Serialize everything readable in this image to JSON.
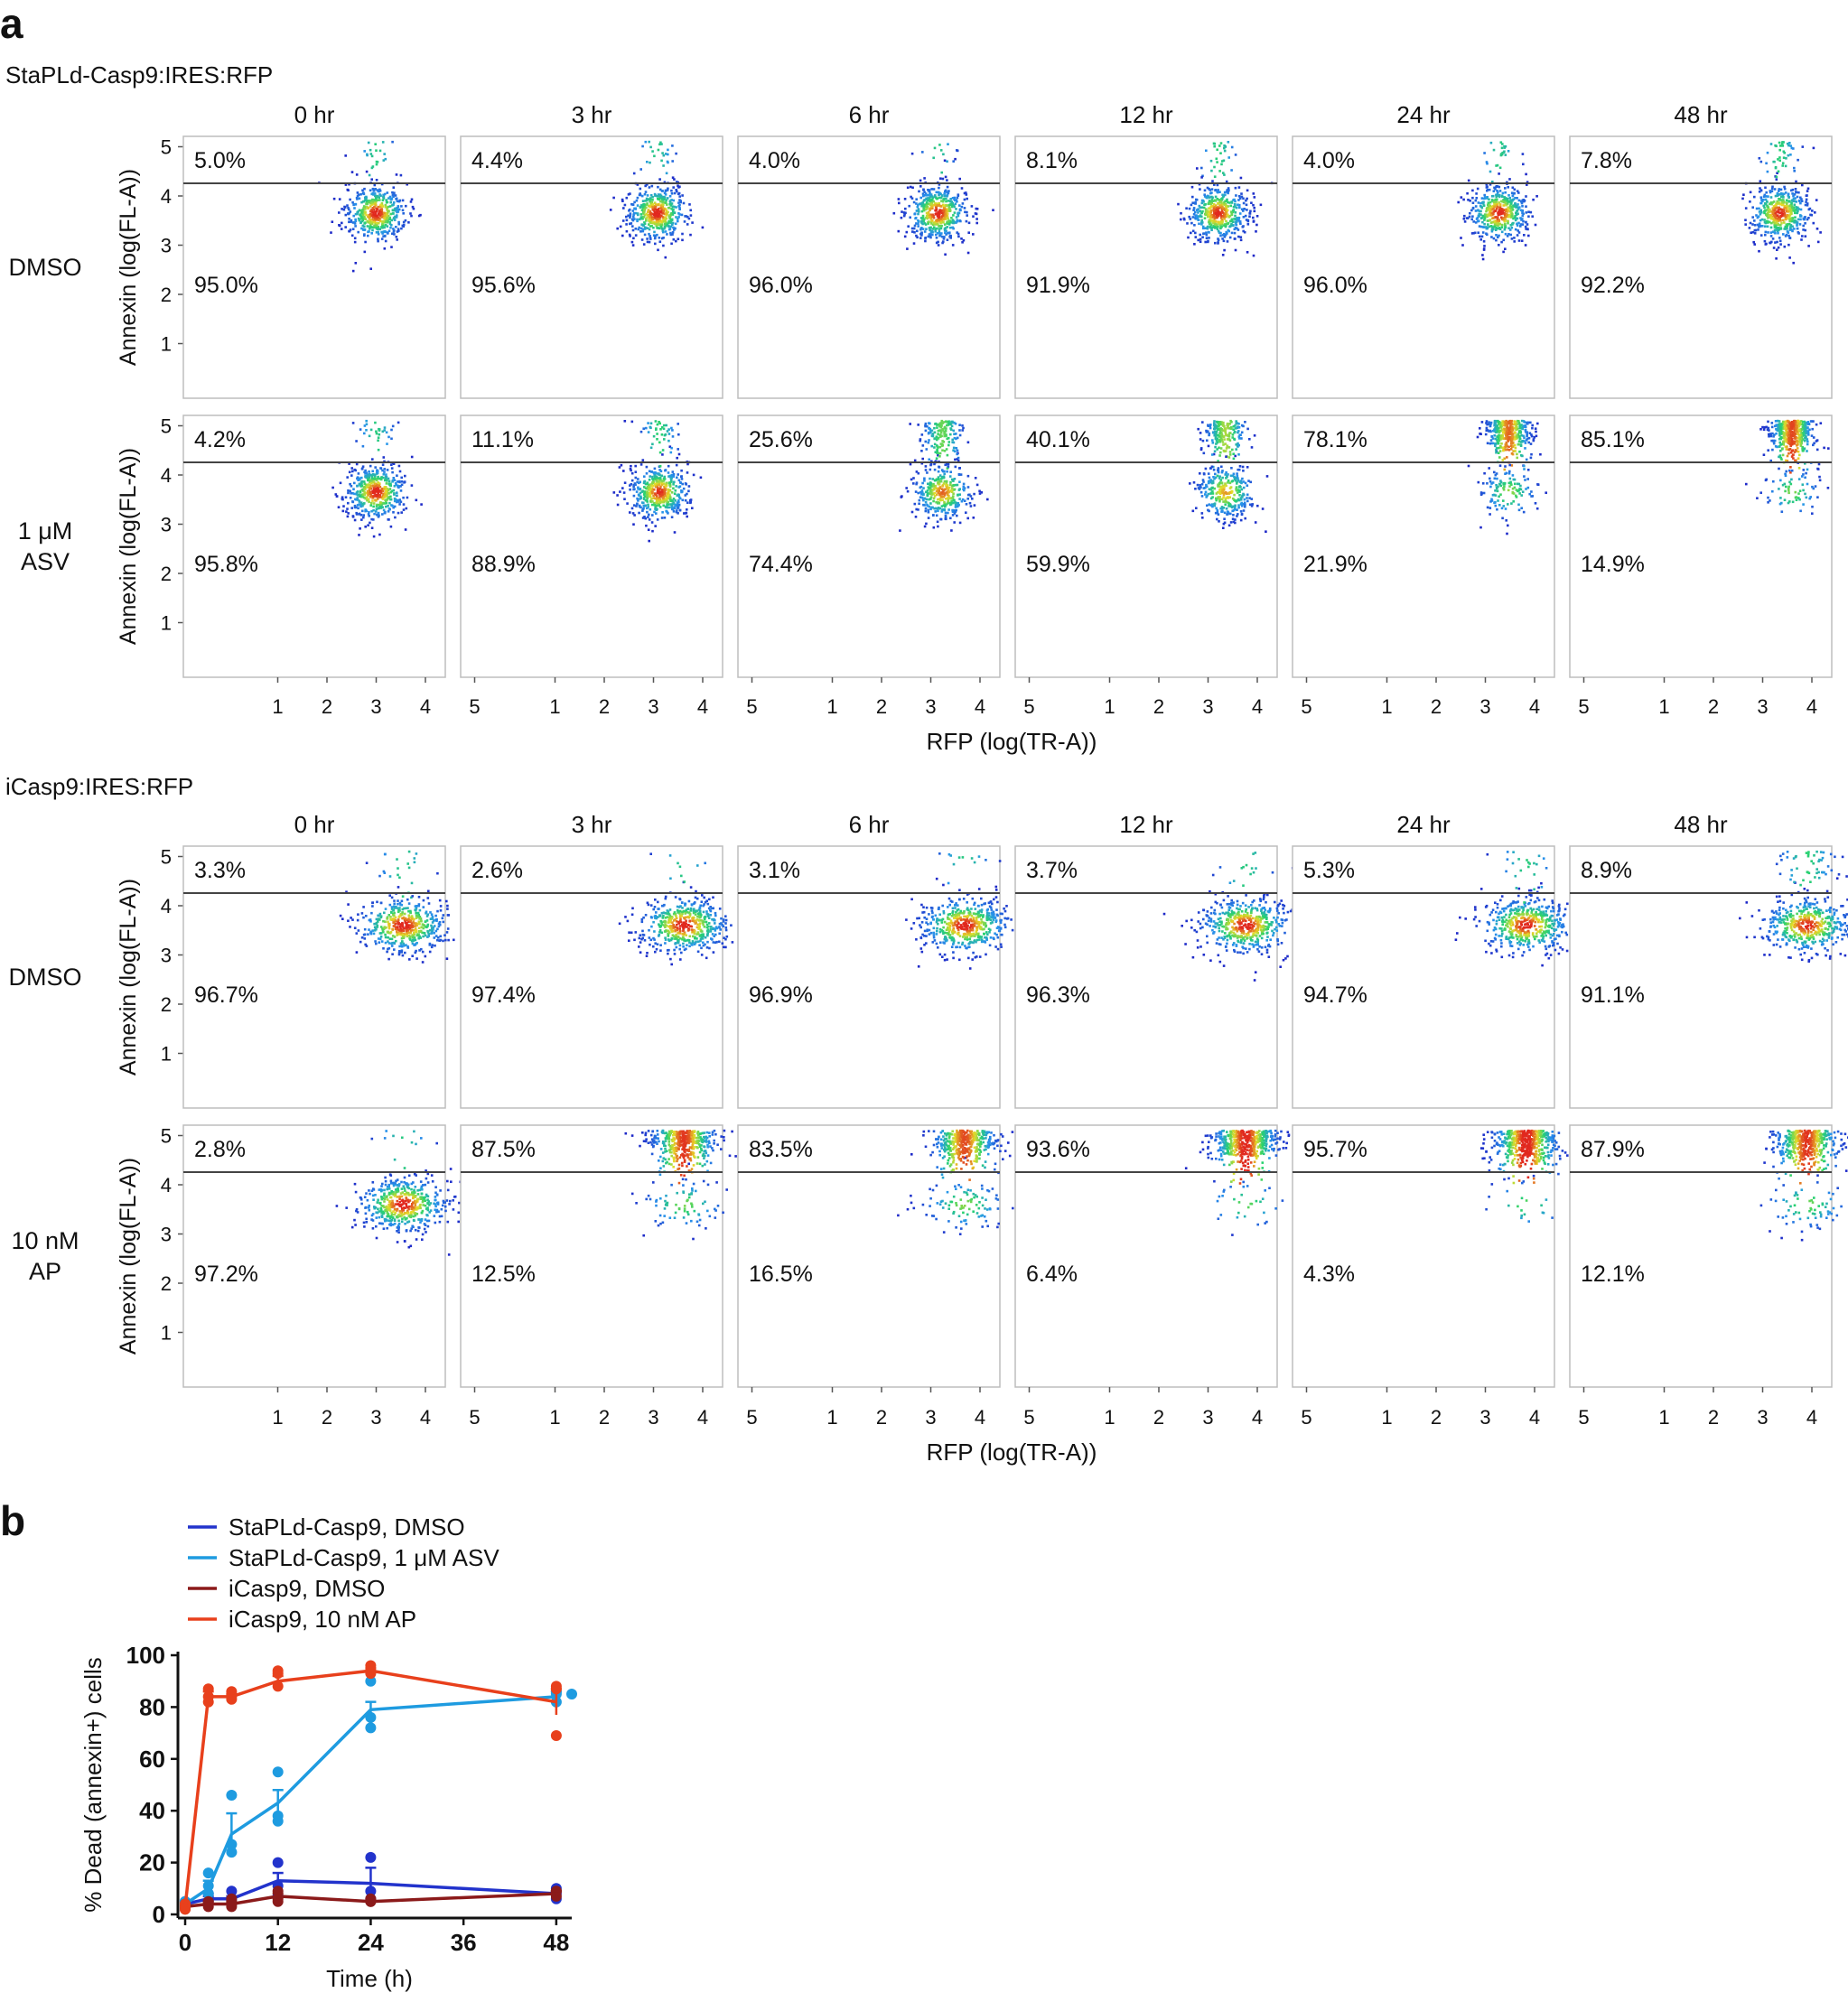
{
  "panel_a": {
    "letter": "a",
    "x_axis_label": "RFP (log(TR-A))",
    "y_axis_label": "Annexin (log(FL-A))",
    "tick_labels": [
      "1",
      "2",
      "3",
      "4",
      "5"
    ],
    "time_points": [
      "0 hr",
      "3 hr",
      "6 hr",
      "12 hr",
      "24 hr",
      "48 hr"
    ],
    "constructs": [
      {
        "title": "StaPLd-Casp9:IRES:RFP",
        "rows": [
          {
            "label_lines": [
              "DMSO"
            ],
            "upper_pct": [
              "5.0%",
              "4.4%",
              "4.0%",
              "8.1%",
              "4.0%",
              "7.8%"
            ],
            "lower_pct": [
              "95.0%",
              "95.6%",
              "96.0%",
              "91.9%",
              "96.0%",
              "92.2%"
            ]
          },
          {
            "label_lines": [
              "1 μM",
              "ASV"
            ],
            "upper_pct": [
              "4.2%",
              "11.1%",
              "25.6%",
              "40.1%",
              "78.1%",
              "85.1%"
            ],
            "lower_pct": [
              "95.8%",
              "88.9%",
              "74.4%",
              "59.9%",
              "21.9%",
              "14.9%"
            ]
          }
        ]
      },
      {
        "title": "iCasp9:IRES:RFP",
        "rows": [
          {
            "label_lines": [
              "DMSO"
            ],
            "upper_pct": [
              "3.3%",
              "2.6%",
              "3.1%",
              "3.7%",
              "5.3%",
              "8.9%"
            ],
            "lower_pct": [
              "96.7%",
              "97.4%",
              "96.9%",
              "96.3%",
              "94.7%",
              "91.1%"
            ]
          },
          {
            "label_lines": [
              "10 nM",
              "AP"
            ],
            "upper_pct": [
              "2.8%",
              "87.5%",
              "83.5%",
              "93.6%",
              "95.7%",
              "87.9%"
            ],
            "lower_pct": [
              "97.2%",
              "12.5%",
              "16.5%",
              "6.4%",
              "4.3%",
              "12.1%"
            ]
          }
        ]
      }
    ]
  },
  "panel_b": {
    "letter": "b",
    "colors": {
      "dark_blue": "#2233cc",
      "light_blue": "#1e9be0",
      "dark_red": "#8b1a1a",
      "red": "#e8401c"
    },
    "chart_data": {
      "type": "line",
      "xlabel": "Time (h)",
      "ylabel": "% Dead (annexin+) cells",
      "xlim": [
        0,
        50
      ],
      "ylim": [
        0,
        100
      ],
      "xticks": [
        0,
        12,
        24,
        36,
        48
      ],
      "yticks": [
        0,
        20,
        40,
        60,
        80,
        100
      ],
      "x": [
        0,
        3,
        6,
        12,
        24,
        48
      ],
      "series": [
        {
          "name": "StaPLd-Casp9, DMSO",
          "color": "#2233cc",
          "values": [
            4,
            6,
            6,
            13,
            12,
            8
          ],
          "sem": [
            1,
            1,
            1,
            3,
            6,
            1
          ],
          "points": [
            [
              0,
              3
            ],
            [
              0,
              5
            ],
            [
              0,
              4
            ],
            [
              3,
              4
            ],
            [
              3,
              8
            ],
            [
              3,
              5
            ],
            [
              6,
              4
            ],
            [
              6,
              9
            ],
            [
              6,
              6
            ],
            [
              12,
              20
            ],
            [
              12,
              11
            ],
            [
              12,
              7
            ],
            [
              24,
              22
            ],
            [
              24,
              6
            ],
            [
              24,
              9
            ],
            [
              48,
              10
            ],
            [
              48,
              6
            ],
            [
              48,
              8
            ]
          ]
        },
        {
          "name": "StaPLd-Casp9, 1 μM ASV",
          "color": "#1e9be0",
          "values": [
            4,
            10,
            31,
            43,
            79,
            84
          ],
          "sem": [
            1,
            3,
            8,
            5,
            3,
            2
          ],
          "points": [
            [
              0,
              3
            ],
            [
              0,
              5
            ],
            [
              0,
              4
            ],
            [
              3,
              16
            ],
            [
              3,
              8
            ],
            [
              3,
              11
            ],
            [
              6,
              46
            ],
            [
              6,
              27
            ],
            [
              6,
              24
            ],
            [
              12,
              55
            ],
            [
              12,
              38
            ],
            [
              12,
              36
            ],
            [
              24,
              90
            ],
            [
              24,
              72
            ],
            [
              24,
              76
            ],
            [
              48,
              86
            ],
            [
              48,
              82
            ],
            [
              48,
              85
            ],
            [
              50,
              85
            ]
          ]
        },
        {
          "name": "iCasp9, DMSO",
          "color": "#8b1a1a",
          "values": [
            3,
            4,
            4,
            7,
            5,
            8
          ],
          "sem": [
            1,
            1,
            1,
            1,
            1,
            1
          ],
          "points": [
            [
              0,
              2
            ],
            [
              0,
              4
            ],
            [
              0,
              3
            ],
            [
              3,
              3
            ],
            [
              3,
              5
            ],
            [
              3,
              4
            ],
            [
              6,
              3
            ],
            [
              6,
              6
            ],
            [
              6,
              4
            ],
            [
              12,
              5
            ],
            [
              12,
              9
            ],
            [
              12,
              6
            ],
            [
              24,
              5
            ],
            [
              24,
              6
            ],
            [
              24,
              5
            ],
            [
              48,
              9
            ],
            [
              48,
              7
            ],
            [
              48,
              9
            ]
          ]
        },
        {
          "name": "iCasp9, 10 nM AP",
          "color": "#e8401c",
          "values": [
            3,
            84,
            84,
            90,
            94,
            82
          ],
          "sem": [
            1,
            2,
            1,
            2,
            1,
            5
          ],
          "points": [
            [
              0,
              2
            ],
            [
              0,
              4
            ],
            [
              0,
              3
            ],
            [
              3,
              87
            ],
            [
              3,
              82
            ],
            [
              3,
              84
            ],
            [
              6,
              86
            ],
            [
              6,
              83
            ],
            [
              6,
              84
            ],
            [
              12,
              94
            ],
            [
              12,
              93
            ],
            [
              12,
              88
            ],
            [
              24,
              96
            ],
            [
              24,
              94
            ],
            [
              24,
              93
            ],
            [
              48,
              88
            ],
            [
              48,
              69
            ],
            [
              48,
              87
            ]
          ]
        }
      ]
    }
  }
}
